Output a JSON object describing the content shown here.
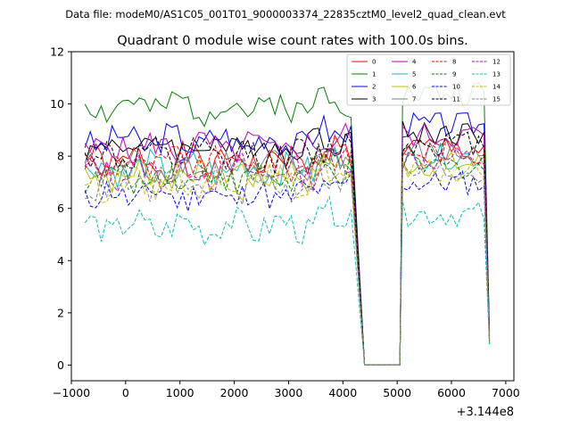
{
  "chart_data": {
    "type": "line",
    "suptitle": "Data file: modeM0/AS1C05_001T01_9000003374_22835cztM0_level2_quad_clean.evt",
    "title": "Quadrant 0 module wise count rates with 100.0s bins.",
    "xlabel": "",
    "ylabel": "",
    "x_offset_label": "+3.144e8",
    "xlim": [
      -1000,
      7150
    ],
    "ylim": [
      -0.6,
      12
    ],
    "xticks": [
      -1000,
      0,
      1000,
      2000,
      3000,
      4000,
      5000,
      6000,
      7000
    ],
    "xtick_labels": [
      "−1000",
      "0",
      "1000",
      "2000",
      "3000",
      "4000",
      "5000",
      "6000",
      "7000"
    ],
    "yticks": [
      0,
      2,
      4,
      6,
      8,
      10,
      12
    ],
    "ytick_labels": [
      "0",
      "2",
      "4",
      "6",
      "8",
      "10",
      "12"
    ],
    "legend_position": "top-right",
    "segment1": {
      "start": -750,
      "step": 100,
      "count": 50
    },
    "segment2": {
      "start": 5100,
      "step": 100,
      "count": 17
    },
    "series": [
      {
        "name": "0",
        "color": "#ff0000",
        "dash": "solid",
        "base": 7.8,
        "seg2_base": 8.3,
        "end": 0.9,
        "seed": 1
      },
      {
        "name": "1",
        "color": "#008000",
        "dash": "solid",
        "base": 9.9,
        "seg2_base": 10.4,
        "end": 1.2,
        "seed": 2
      },
      {
        "name": "2",
        "color": "#0000ff",
        "dash": "solid",
        "base": 8.6,
        "seg2_base": 9.2,
        "end": 1.3,
        "seed": 3
      },
      {
        "name": "3",
        "color": "#000000",
        "dash": "solid",
        "base": 8.4,
        "seg2_base": 8.9,
        "end": 1.1,
        "seed": 4
      },
      {
        "name": "4",
        "color": "#bf00bf",
        "dash": "solid",
        "base": 8.3,
        "seg2_base": 8.8,
        "end": 1.0,
        "seed": 5
      },
      {
        "name": "5",
        "color": "#00bfbf",
        "dash": "solid",
        "base": 7.5,
        "seg2_base": 8.0,
        "end": 0.9,
        "seed": 6
      },
      {
        "name": "6",
        "color": "#bfbf00",
        "dash": "solid",
        "base": 7.3,
        "seg2_base": 7.7,
        "end": 0.9,
        "seed": 7
      },
      {
        "name": "7",
        "color": "#808080",
        "dash": "solid",
        "base": 7.6,
        "seg2_base": 8.1,
        "end": 1.0,
        "seed": 8
      },
      {
        "name": "8",
        "color": "#ff0000",
        "dash": "dashed",
        "base": 7.7,
        "seg2_base": 8.2,
        "end": 0.9,
        "seed": 9
      },
      {
        "name": "9",
        "color": "#008000",
        "dash": "dashed",
        "base": 7.2,
        "seg2_base": 7.6,
        "end": 0.9,
        "seed": 10
      },
      {
        "name": "10",
        "color": "#0000ff",
        "dash": "dashed",
        "base": 6.5,
        "seg2_base": 7.0,
        "end": 0.8,
        "seed": 11
      },
      {
        "name": "11",
        "color": "#000000",
        "dash": "dashed",
        "base": 8.0,
        "seg2_base": 8.5,
        "end": 1.0,
        "seed": 12
      },
      {
        "name": "12",
        "color": "#bf00bf",
        "dash": "dashed",
        "base": 7.4,
        "seg2_base": 7.9,
        "end": 0.9,
        "seed": 13
      },
      {
        "name": "13",
        "color": "#00bfbf",
        "dash": "dashed",
        "base": 5.3,
        "seg2_base": 5.8,
        "end": 0.8,
        "seed": 14
      },
      {
        "name": "14",
        "color": "#bfbf00",
        "dash": "dashed",
        "base": 7.0,
        "seg2_base": 7.4,
        "end": 0.9,
        "seed": 15
      },
      {
        "name": "15",
        "color": "#808080",
        "dash": "dashed",
        "base": 6.9,
        "seg2_base": 7.4,
        "end": 0.9,
        "seed": 16
      }
    ]
  }
}
